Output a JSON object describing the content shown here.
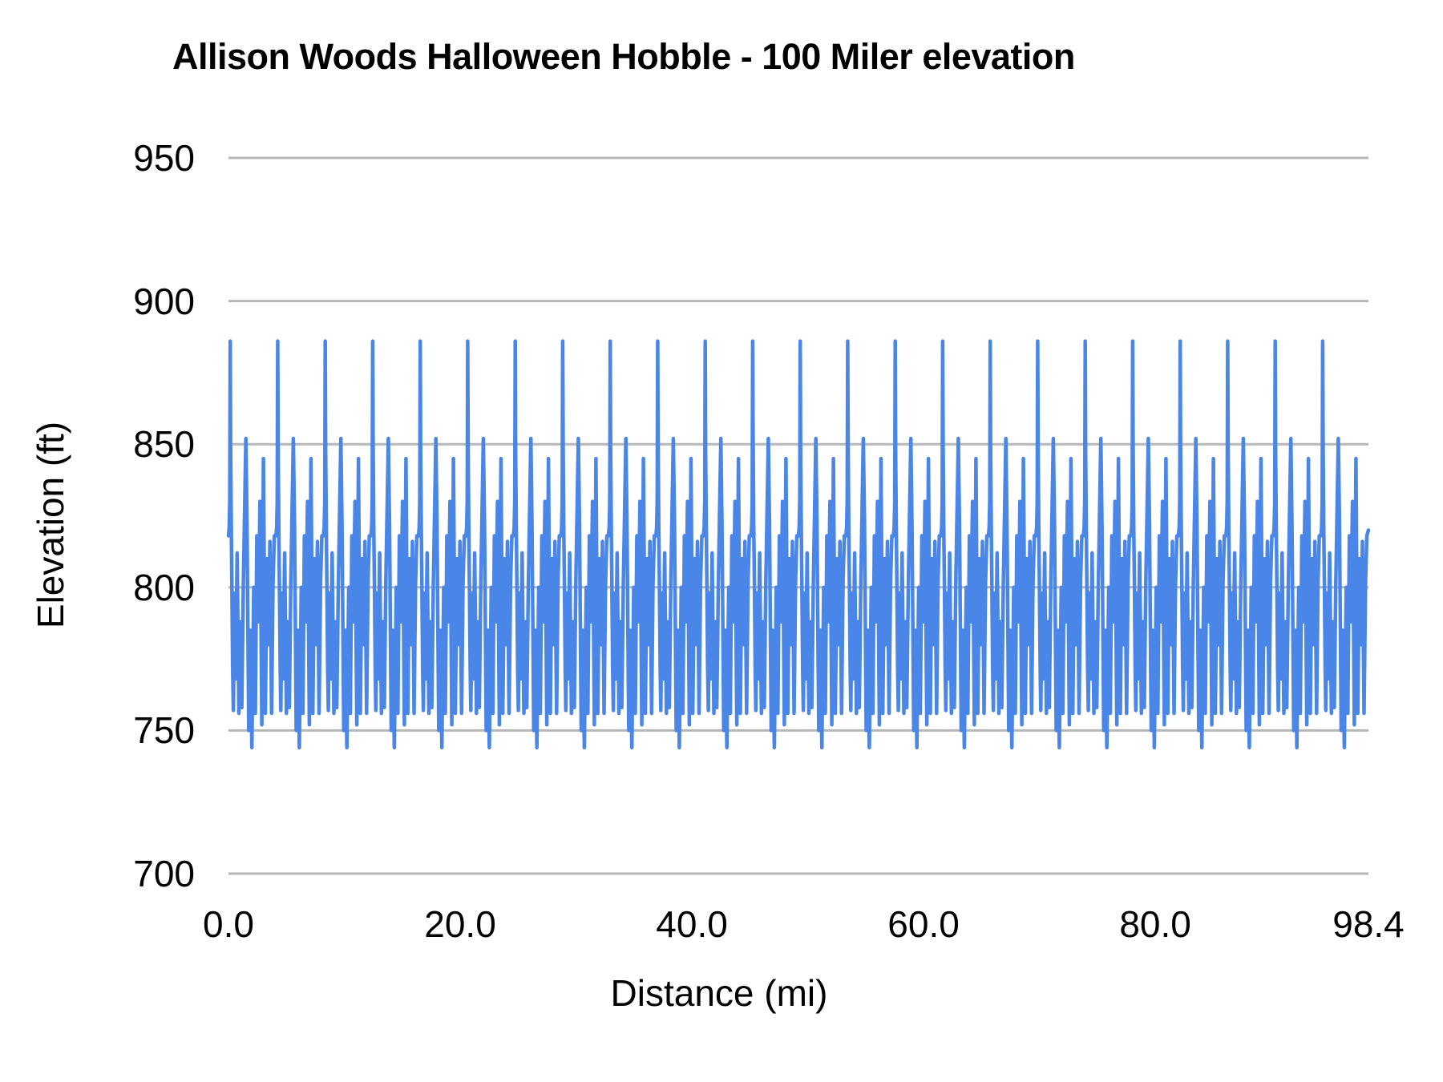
{
  "chart_data": {
    "type": "line",
    "title": "Allison Woods Halloween Hobble - 100 Miler elevation",
    "xlabel": "Distance (mi)",
    "ylabel": "Elevation (ft)",
    "xlim": [
      0,
      98.4
    ],
    "ylim": [
      700,
      950
    ],
    "grid": "horizontal-only",
    "legend_position": "none",
    "y_ticks": [
      950,
      900,
      850,
      800,
      750,
      700
    ],
    "y_tick_labels": [
      "950",
      "900",
      "850",
      "800",
      "750",
      "700"
    ],
    "x_ticks": [
      0,
      20,
      40,
      60,
      80,
      98.4
    ],
    "x_tick_labels": [
      "0.0",
      "20.0",
      "40.0",
      "60.0",
      "80.0",
      "98.4"
    ],
    "series_name": "elevation",
    "series_color": "#4a86e8",
    "gridline_color": "#b7b7b7",
    "text_color": "#000000",
    "background_color": "#ffffff",
    "series": {
      "description": "Repeating lap course: 24 laps of 4.1 mi = 98.4 mi total. Each lap: sharp spike to ~886 ft near lap start, medium peak ~852 ft at ~1.5 mi, second medium peak ~845 ft at ~3.0 mi, jagged troughs between ~744 and ~757 ft, shoulders ~818-825 ft.",
      "laps": 24,
      "lap_length_mi": 4.1,
      "total_mi": 98.4,
      "max_elevation_ft": 886,
      "min_elevation_ft": 744,
      "lap_profile_mi_ft": [
        [
          0.0,
          818
        ],
        [
          0.06,
          821
        ],
        [
          0.11,
          830
        ],
        [
          0.15,
          886
        ],
        [
          0.19,
          848
        ],
        [
          0.24,
          822
        ],
        [
          0.3,
          800
        ],
        [
          0.36,
          772
        ],
        [
          0.42,
          757
        ],
        [
          0.52,
          798
        ],
        [
          0.62,
          768
        ],
        [
          0.75,
          812
        ],
        [
          0.9,
          756
        ],
        [
          1.02,
          788
        ],
        [
          1.15,
          758
        ],
        [
          1.28,
          800
        ],
        [
          1.5,
          852
        ],
        [
          1.6,
          822
        ],
        [
          1.75,
          750
        ],
        [
          1.88,
          785
        ],
        [
          2.02,
          744
        ],
        [
          2.18,
          800
        ],
        [
          2.32,
          756
        ],
        [
          2.45,
          818
        ],
        [
          2.58,
          788
        ],
        [
          2.72,
          830
        ],
        [
          2.88,
          752
        ],
        [
          3.02,
          845
        ],
        [
          3.18,
          756
        ],
        [
          3.32,
          810
        ],
        [
          3.46,
          780
        ],
        [
          3.58,
          816
        ],
        [
          3.72,
          756
        ],
        [
          3.85,
          802
        ],
        [
          3.96,
          818
        ]
      ],
      "final_point_mi_ft": [
        98.4,
        820
      ]
    }
  }
}
